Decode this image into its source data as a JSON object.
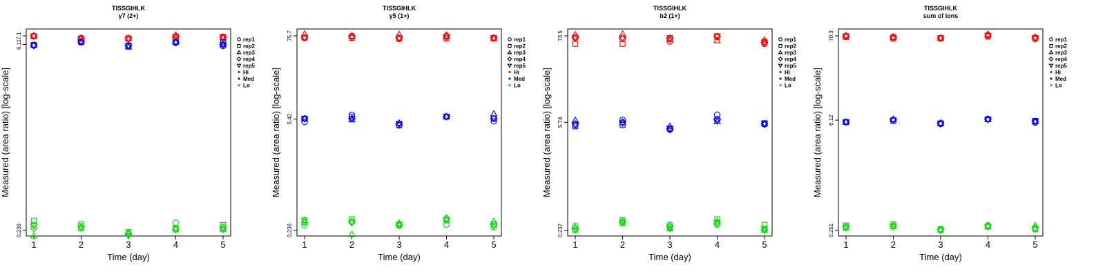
{
  "chart_data": [
    {
      "type": "scatter",
      "title": "TISSGIHLK",
      "subtitle": "y7 (2+)",
      "xlabel": "Time (day)",
      "ylabel": "Measured (area ratio) [log-scale]",
      "x": [
        1,
        2,
        3,
        4,
        5
      ],
      "xticks": [
        "1",
        "2",
        "3",
        "4",
        "5"
      ],
      "yticks": [
        "0.236",
        "6.11",
        "7.1"
      ],
      "ylim": [
        0.236,
        7.1
      ],
      "scale": "log",
      "series": [
        {
          "name": "Hi",
          "color": "#ff0000",
          "reps": [
            [
              7.1,
              6.85,
              6.75,
              6.8,
              6.8
            ],
            [
              7.05,
              6.75,
              6.8,
              6.95,
              6.9
            ],
            [
              7.1,
              6.8,
              6.75,
              7.2,
              6.9
            ],
            [
              7.1,
              6.8,
              6.8,
              7.05,
              6.95
            ],
            [
              7.05,
              6.75,
              6.75,
              7.05,
              7.0
            ]
          ]
        },
        {
          "name": "Med",
          "color": "#0000ff",
          "reps": [
            [
              6.0,
              6.4,
              5.9,
              6.3,
              5.95
            ],
            [
              6.05,
              6.35,
              6.0,
              6.35,
              6.35
            ],
            [
              6.05,
              6.5,
              5.85,
              6.4,
              6.1
            ],
            [
              6.0,
              6.4,
              6.0,
              6.3,
              6.1
            ],
            [
              6.0,
              6.35,
              5.95,
              6.35,
              6.1
            ]
          ]
        },
        {
          "name": "Lo",
          "color": "#00dd00",
          "reps": [
            [
              0.26,
              0.265,
              0.225,
              0.27,
              0.245
            ],
            [
              0.28,
              0.255,
              0.23,
              0.24,
              0.26
            ],
            [
              0.215,
              0.245,
              0.225,
              0.245,
              0.24
            ],
            [
              0.245,
              0.25,
              0.22,
              0.24,
              0.25
            ],
            [
              0.255,
              0.245,
              0.215,
              0.245,
              0.24
            ]
          ]
        }
      ]
    },
    {
      "type": "scatter",
      "title": "TISSGIHLK",
      "subtitle": "y5 (1+)",
      "xlabel": "Time (day)",
      "ylabel": "Measured (area ratio) [log-scale]",
      "x": [
        1,
        2,
        3,
        4,
        5
      ],
      "xticks": [
        "1",
        "2",
        "3",
        "4",
        "5"
      ],
      "yticks": [
        "0.236",
        "6.42",
        "75.7"
      ],
      "ylim": [
        0.236,
        75.7
      ],
      "scale": "log",
      "series": [
        {
          "name": "Hi",
          "color": "#ff0000",
          "reps": [
            [
              71,
              76,
              69,
              74,
              70
            ],
            [
              72,
              71,
              70,
              70,
              71
            ],
            [
              80,
              75,
              79,
              75,
              70
            ],
            [
              72,
              74,
              71,
              77,
              71
            ],
            [
              72,
              72,
              71,
              71,
              71
            ]
          ]
        },
        {
          "name": "Med",
          "color": "#0000ff",
          "reps": [
            [
              5.9,
              7.3,
              5.3,
              6.9,
              6.0
            ],
            [
              6.5,
              6.9,
              5.4,
              6.9,
              6.5
            ],
            [
              6.5,
              6.3,
              5.7,
              6.9,
              7.5
            ],
            [
              6.5,
              6.5,
              5.6,
              6.9,
              6.5
            ],
            [
              6.5,
              6.5,
              5.6,
              6.9,
              6.6
            ]
          ]
        },
        {
          "name": "Lo",
          "color": "#00dd00",
          "reps": [
            [
              0.275,
              0.31,
              0.27,
              0.28,
              0.26
            ],
            [
              0.3,
              0.33,
              0.28,
              0.32,
              0.285
            ],
            [
              0.32,
              0.21,
              0.295,
              0.33,
              0.31
            ],
            [
              0.3,
              0.3,
              0.28,
              0.34,
              0.28
            ],
            [
              0.32,
              0.3,
              0.28,
              0.32,
              0.27
            ]
          ]
        }
      ]
    },
    {
      "type": "scatter",
      "title": "TISSGIHLK",
      "subtitle": "b2 (1+)",
      "xlabel": "Time (day)",
      "ylabel": "Measured (area ratio) [log-scale]",
      "x": [
        1,
        2,
        3,
        4,
        5
      ],
      "xticks": [
        "1",
        "2",
        "3",
        "4",
        "5"
      ],
      "yticks": [
        "0.237",
        "5.74",
        "73.5"
      ],
      "ylim": [
        0.237,
        73.5
      ],
      "scale": "log",
      "series": [
        {
          "name": "Hi",
          "color": "#ff0000",
          "reps": [
            [
              69,
              67,
              62,
              73,
              58
            ],
            [
              58,
              58,
              69,
              71,
              62
            ],
            [
              76,
              78,
              66,
              64,
              65
            ],
            [
              70,
              70,
              68,
              72,
              60
            ],
            [
              70,
              68,
              66,
              73,
              60
            ]
          ]
        },
        {
          "name": "Med",
          "color": "#0000ff",
          "reps": [
            [
              5.3,
              6.2,
              4.6,
              7.2,
              5.4
            ],
            [
              5.1,
              5.3,
              4.8,
              6.3,
              5.6
            ],
            [
              6.1,
              5.7,
              5.1,
              5.9,
              5.5
            ],
            [
              5.5,
              5.8,
              4.7,
              6.2,
              5.5
            ],
            [
              5.4,
              5.6,
              4.8,
              6.0,
              5.5
            ]
          ]
        },
        {
          "name": "Lo",
          "color": "#00dd00",
          "reps": [
            [
              0.27,
              0.31,
              0.28,
              0.28,
              0.25
            ],
            [
              0.24,
              0.32,
              0.26,
              0.33,
              0.28
            ],
            [
              0.26,
              0.29,
              0.25,
              0.31,
              0.24
            ],
            [
              0.25,
              0.3,
              0.27,
              0.29,
              0.24
            ],
            [
              0.24,
              0.3,
              0.25,
              0.3,
              0.25
            ]
          ]
        }
      ]
    },
    {
      "type": "scatter",
      "title": "TISSGIHLK",
      "subtitle": "sum of ions",
      "xlabel": "Time (day)",
      "ylabel": "Measured (area ratio) [log-scale]",
      "x": [
        1,
        2,
        3,
        4,
        5
      ],
      "xticks": [
        "1",
        "2",
        "3",
        "4",
        "5"
      ],
      "yticks": [
        "0.251",
        "6.12",
        "70.3"
      ],
      "ylim": [
        0.251,
        70.3
      ],
      "scale": "log",
      "series": [
        {
          "name": "Hi",
          "color": "#ff0000",
          "reps": [
            [
              70,
              69,
              65,
              72,
              64
            ],
            [
              68,
              65,
              66,
              69,
              66
            ],
            [
              71,
              67,
              66,
              74,
              68
            ],
            [
              69,
              67,
              66,
              70,
              67
            ],
            [
              70,
              66,
              66,
              71,
              66
            ]
          ]
        },
        {
          "name": "Med",
          "color": "#0000ff",
          "reps": [
            [
              5.8,
              6.2,
              5.5,
              6.3,
              5.7
            ],
            [
              5.8,
              6.0,
              5.6,
              6.3,
              6.0
            ],
            [
              5.8,
              6.3,
              5.6,
              6.3,
              5.9
            ],
            [
              5.8,
              6.2,
              5.6,
              6.3,
              5.9
            ],
            [
              5.8,
              6.1,
              5.5,
              6.2,
              5.9
            ]
          ]
        },
        {
          "name": "Lo",
          "color": "#00dd00",
          "reps": [
            [
              0.28,
              0.29,
              0.255,
              0.29,
              0.27
            ],
            [
              0.29,
              0.3,
              0.26,
              0.28,
              0.26
            ],
            [
              0.27,
              0.28,
              0.255,
              0.285,
              0.29
            ],
            [
              0.28,
              0.29,
              0.26,
              0.29,
              0.27
            ],
            [
              0.27,
              0.28,
              0.25,
              0.28,
              0.26
            ]
          ]
        }
      ]
    }
  ],
  "legend": {
    "reps": [
      {
        "label": "rep1",
        "marker": "circle"
      },
      {
        "label": "rep2",
        "marker": "square"
      },
      {
        "label": "rep3",
        "marker": "triangle-up"
      },
      {
        "label": "rep4",
        "marker": "diamond"
      },
      {
        "label": "rep5",
        "marker": "triangle-down"
      }
    ],
    "levels": [
      {
        "label": "Hi",
        "color": "#ff0000"
      },
      {
        "label": "Med",
        "color": "#0000ff"
      },
      {
        "label": "Lo",
        "color": "#00dd00"
      }
    ]
  }
}
